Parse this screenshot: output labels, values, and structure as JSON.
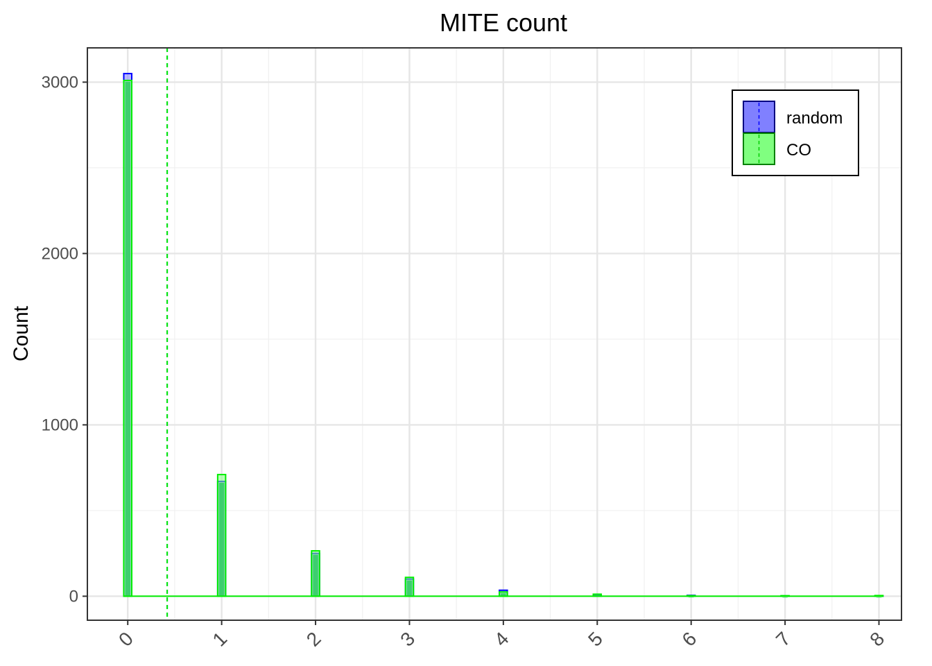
{
  "chart_data": {
    "type": "bar",
    "title": "MITE count",
    "xlabel": "",
    "ylabel": "Count",
    "x_ticks": [
      "0",
      "1",
      "2",
      "3",
      "4",
      "5",
      "6",
      "7",
      "8"
    ],
    "y_ticks": [
      "0",
      "1000",
      "2000",
      "3000"
    ],
    "ylim": [
      -140,
      3200
    ],
    "xlim": [
      -0.43,
      8.24
    ],
    "grid": true,
    "legend_position": "top-right",
    "series": [
      {
        "name": "random",
        "color": "#0000ff",
        "fill": "#8080ff",
        "mean": 0.42,
        "x": [
          0,
          1,
          2,
          3,
          4,
          5,
          6,
          7,
          8
        ],
        "values": [
          3050,
          670,
          250,
          100,
          35,
          8,
          5,
          2,
          1
        ]
      },
      {
        "name": "CO",
        "color": "#00ee00",
        "fill": "#80ff80",
        "mean": 0.42,
        "x": [
          0,
          1,
          2,
          3,
          4,
          5,
          6,
          7,
          8
        ],
        "values": [
          3010,
          710,
          265,
          110,
          25,
          12,
          3,
          3,
          4
        ]
      }
    ]
  }
}
